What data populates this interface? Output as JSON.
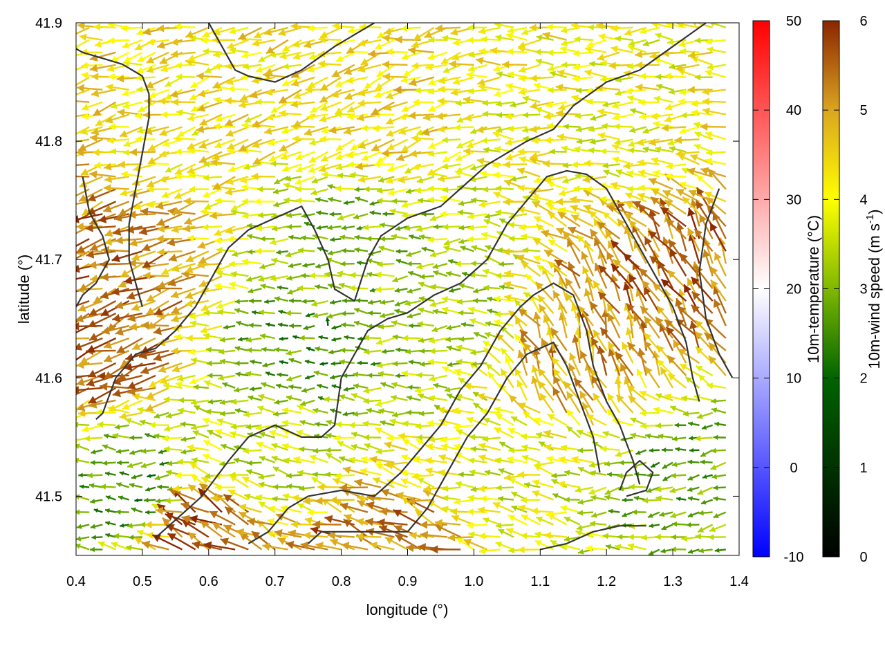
{
  "chart_data": {
    "type": "vector-field",
    "xlabel": "longitude (°)",
    "ylabel": "latitude (°)",
    "xlim": [
      0.4,
      1.4
    ],
    "ylim": [
      41.45,
      41.9
    ],
    "xticks": [
      "0.4",
      "0.5",
      "0.6",
      "0.7",
      "0.8",
      "0.9",
      "1.0",
      "1.1",
      "1.2",
      "1.3",
      "1.4"
    ],
    "yticks": [
      "41.5",
      "41.6",
      "41.7",
      "41.8",
      "41.9"
    ],
    "grid": false,
    "colorbars": [
      {
        "label": "10m-temperature (°C)",
        "range": [
          -10,
          50
        ],
        "ticks": [
          "-10",
          "0",
          "10",
          "20",
          "30",
          "40",
          "50"
        ],
        "palette": [
          "#0000ff",
          "#ffffff",
          "#ff0000"
        ]
      },
      {
        "label_main": "10m-wind speed (m s",
        "label_sup": "-1",
        "label_end": ")",
        "range": [
          0,
          6
        ],
        "ticks": [
          "0",
          "1",
          "2",
          "3",
          "4",
          "5",
          "6"
        ],
        "palette": [
          "#000000",
          "#006400",
          "#7fb800",
          "#ffff00",
          "#daa520",
          "#8b2500"
        ]
      }
    ],
    "wind_field": {
      "grid_lon": [
        0.4,
        1.38,
        0.02
      ],
      "grid_lat": [
        41.455,
        41.9,
        0.0105
      ],
      "prevailing_direction": "westward",
      "regions": [
        {
          "lon": 0.47,
          "lat": 41.73,
          "speed": 5.2,
          "dir_deg": 195
        },
        {
          "lon": 0.45,
          "lat": 41.64,
          "speed": 5.4,
          "dir_deg": 200
        },
        {
          "lon": 0.55,
          "lat": 41.78,
          "speed": 3.9,
          "dir_deg": 190
        },
        {
          "lon": 0.85,
          "lat": 41.82,
          "speed": 4.1,
          "dir_deg": 195
        },
        {
          "lon": 0.82,
          "lat": 41.72,
          "speed": 2.4,
          "dir_deg": 180
        },
        {
          "lon": 0.75,
          "lat": 41.62,
          "speed": 1.9,
          "dir_deg": 180
        },
        {
          "lon": 0.95,
          "lat": 41.65,
          "speed": 2.6,
          "dir_deg": 180
        },
        {
          "lon": 1.17,
          "lat": 41.61,
          "speed": 4.8,
          "dir_deg": 110
        },
        {
          "lon": 1.3,
          "lat": 41.68,
          "speed": 5.3,
          "dir_deg": 120
        },
        {
          "lon": 1.2,
          "lat": 41.8,
          "speed": 3.6,
          "dir_deg": 180
        },
        {
          "lon": 0.6,
          "lat": 41.47,
          "speed": 5.6,
          "dir_deg": 150
        },
        {
          "lon": 0.87,
          "lat": 41.46,
          "speed": 5.2,
          "dir_deg": 160
        },
        {
          "lon": 0.7,
          "lat": 41.53,
          "speed": 3.0,
          "dir_deg": 170
        },
        {
          "lon": 1.05,
          "lat": 41.52,
          "speed": 3.3,
          "dir_deg": 170
        },
        {
          "lon": 1.32,
          "lat": 41.52,
          "speed": 2.2,
          "dir_deg": 190
        },
        {
          "lon": 0.5,
          "lat": 41.5,
          "speed": 1.8,
          "dir_deg": 180
        }
      ]
    },
    "contours": [
      [
        [
          0.43,
          41.565
        ],
        [
          0.44,
          41.57
        ],
        [
          0.46,
          41.6
        ],
        [
          0.49,
          41.62
        ],
        [
          0.52,
          41.625
        ],
        [
          0.55,
          41.64
        ],
        [
          0.58,
          41.66
        ],
        [
          0.61,
          41.69
        ],
        [
          0.63,
          41.71
        ],
        [
          0.66,
          41.725
        ],
        [
          0.7,
          41.735
        ],
        [
          0.74,
          41.745
        ],
        [
          0.76,
          41.725
        ],
        [
          0.78,
          41.7
        ],
        [
          0.79,
          41.675
        ],
        [
          0.82,
          41.665
        ],
        [
          0.84,
          41.7
        ],
        [
          0.86,
          41.72
        ],
        [
          0.9,
          41.735
        ],
        [
          0.95,
          41.745
        ],
        [
          0.99,
          41.765
        ],
        [
          1.02,
          41.78
        ],
        [
          1.05,
          41.79
        ],
        [
          1.08,
          41.8
        ],
        [
          1.12,
          41.81
        ],
        [
          1.15,
          41.83
        ],
        [
          1.2,
          41.85
        ],
        [
          1.25,
          41.86
        ],
        [
          1.3,
          41.88
        ],
        [
          1.35,
          41.9
        ]
      ],
      [
        [
          0.5,
          41.66
        ],
        [
          0.49,
          41.68
        ],
        [
          0.48,
          41.7
        ],
        [
          0.48,
          41.73
        ],
        [
          0.49,
          41.76
        ],
        [
          0.5,
          41.79
        ],
        [
          0.51,
          41.82
        ],
        [
          0.51,
          41.84
        ],
        [
          0.5,
          41.855
        ],
        [
          0.47,
          41.865
        ],
        [
          0.44,
          41.87
        ],
        [
          0.41,
          41.875
        ],
        [
          0.4,
          41.878
        ]
      ],
      [
        [
          0.52,
          41.465
        ],
        [
          0.55,
          41.48
        ],
        [
          0.59,
          41.5
        ],
        [
          0.63,
          41.53
        ],
        [
          0.66,
          41.55
        ],
        [
          0.7,
          41.56
        ],
        [
          0.74,
          41.55
        ],
        [
          0.77,
          41.55
        ],
        [
          0.79,
          41.56
        ],
        [
          0.8,
          41.6
        ],
        [
          0.82,
          41.62
        ],
        [
          0.84,
          41.64
        ],
        [
          0.87,
          41.65
        ],
        [
          0.9,
          41.655
        ],
        [
          0.94,
          41.67
        ],
        [
          0.98,
          41.68
        ],
        [
          1.02,
          41.7
        ],
        [
          1.05,
          41.73
        ],
        [
          1.08,
          41.75
        ],
        [
          1.11,
          41.77
        ],
        [
          1.14,
          41.775
        ],
        [
          1.17,
          41.772
        ],
        [
          1.2,
          41.76
        ],
        [
          1.22,
          41.74
        ],
        [
          1.24,
          41.72
        ],
        [
          1.26,
          41.7
        ],
        [
          1.28,
          41.68
        ],
        [
          1.3,
          41.66
        ],
        [
          1.32,
          41.63
        ],
        [
          1.33,
          41.6
        ],
        [
          1.34,
          41.58
        ]
      ],
      [
        [
          0.66,
          41.46
        ],
        [
          0.69,
          41.47
        ],
        [
          0.72,
          41.49
        ],
        [
          0.75,
          41.5
        ],
        [
          0.8,
          41.505
        ],
        [
          0.85,
          41.5
        ],
        [
          0.89,
          41.52
        ],
        [
          0.92,
          41.54
        ],
        [
          0.95,
          41.56
        ],
        [
          0.98,
          41.59
        ],
        [
          1.01,
          41.61
        ],
        [
          1.04,
          41.64
        ],
        [
          1.07,
          41.66
        ],
        [
          1.09,
          41.67
        ],
        [
          1.12,
          41.68
        ],
        [
          1.15,
          41.67
        ],
        [
          1.17,
          41.64
        ],
        [
          1.18,
          41.61
        ],
        [
          1.2,
          41.58
        ],
        [
          1.22,
          41.56
        ],
        [
          1.24,
          41.53
        ],
        [
          1.25,
          41.51
        ]
      ],
      [
        [
          0.75,
          41.46
        ],
        [
          0.77,
          41.47
        ],
        [
          0.82,
          41.47
        ],
        [
          0.86,
          41.47
        ],
        [
          0.9,
          41.47
        ],
        [
          0.93,
          41.49
        ],
        [
          0.96,
          41.52
        ],
        [
          0.99,
          41.55
        ],
        [
          1.02,
          41.57
        ],
        [
          1.05,
          41.6
        ],
        [
          1.08,
          41.62
        ],
        [
          1.12,
          41.63
        ],
        [
          1.14,
          41.61
        ],
        [
          1.16,
          41.58
        ],
        [
          1.18,
          41.55
        ],
        [
          1.19,
          41.52
        ]
      ],
      [
        [
          1.1,
          41.455
        ],
        [
          1.14,
          41.46
        ],
        [
          1.18,
          41.47
        ],
        [
          1.22,
          41.475
        ],
        [
          1.26,
          41.475
        ]
      ],
      [
        [
          1.23,
          41.5
        ],
        [
          1.26,
          41.505
        ],
        [
          1.27,
          41.52
        ],
        [
          1.25,
          41.53
        ],
        [
          1.23,
          41.52
        ],
        [
          1.22,
          41.505
        ]
      ],
      [
        [
          0.41,
          41.77
        ],
        [
          0.42,
          41.74
        ],
        [
          0.44,
          41.72
        ],
        [
          0.45,
          41.7
        ],
        [
          0.43,
          41.68
        ],
        [
          0.41,
          41.67
        ],
        [
          0.4,
          41.66
        ]
      ],
      [
        [
          0.6,
          41.9
        ],
        [
          0.62,
          41.88
        ],
        [
          0.64,
          41.86
        ],
        [
          0.66,
          41.855
        ],
        [
          0.7,
          41.85
        ],
        [
          0.74,
          41.86
        ],
        [
          0.79,
          41.88
        ],
        [
          0.82,
          41.89
        ],
        [
          0.85,
          41.9
        ]
      ],
      [
        [
          1.37,
          41.76
        ],
        [
          1.35,
          41.73
        ],
        [
          1.34,
          41.69
        ],
        [
          1.35,
          41.65
        ],
        [
          1.37,
          41.62
        ],
        [
          1.39,
          41.6
        ]
      ]
    ]
  }
}
